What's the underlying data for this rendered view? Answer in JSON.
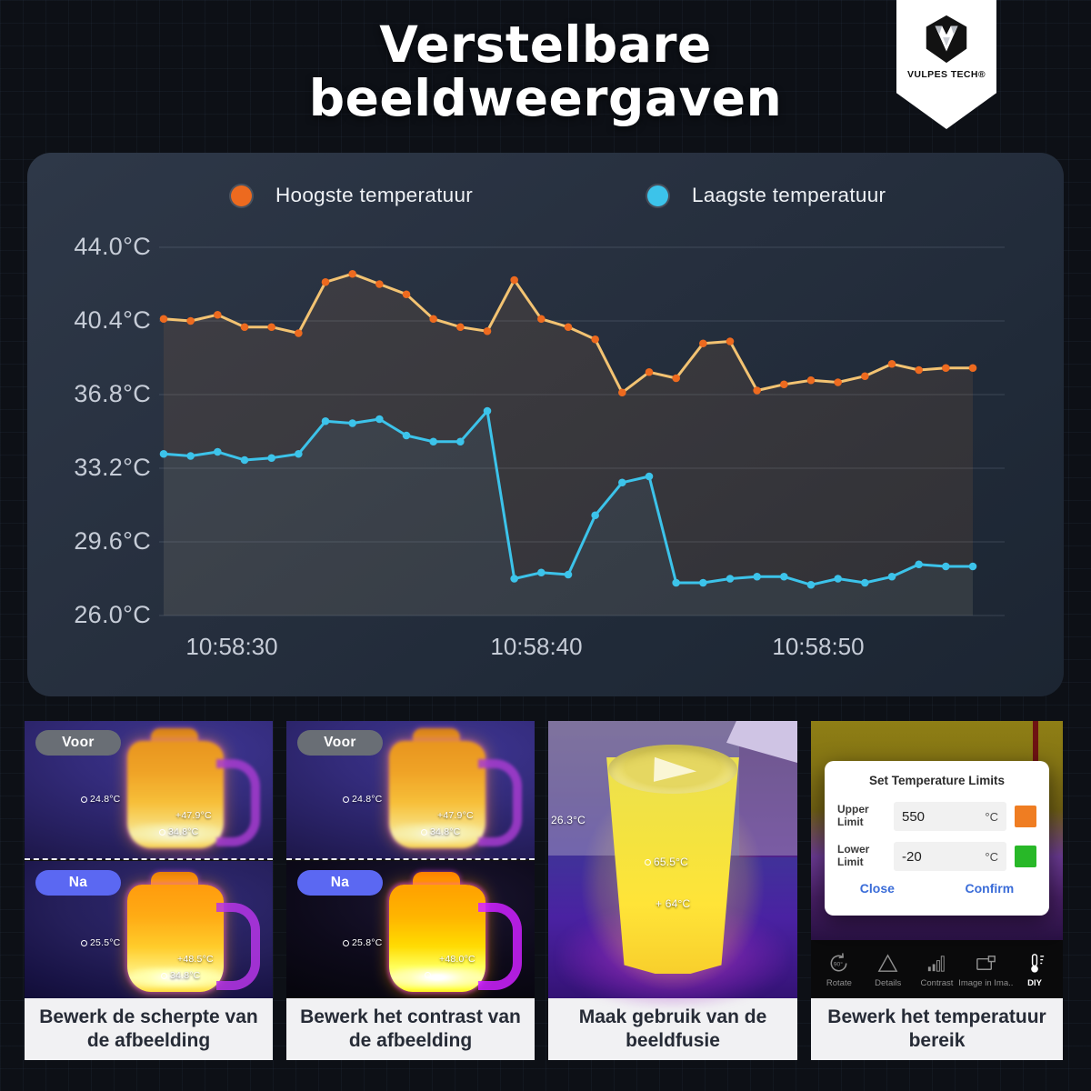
{
  "header": {
    "title": "Verstelbare beeldweergaven",
    "brand": "VULPES TECH®"
  },
  "chart_data": {
    "type": "line",
    "x_tick_labels": [
      "10:58:30",
      "10:58:40",
      "10:58:50"
    ],
    "y_tick_labels": [
      "44.0°C",
      "40.4°C",
      "36.8°C",
      "33.2°C",
      "29.6°C",
      "26.0°C"
    ],
    "y_range": [
      26.0,
      44.0
    ],
    "grid": "horizontal",
    "legend_position": "top",
    "series": [
      {
        "name": "Hoogste temperatuur",
        "marker_color": "#ed6a1f",
        "line_color": "#f3c372",
        "area_color": "rgba(235,150,70,0.10)",
        "values": [
          40.5,
          40.4,
          40.7,
          40.1,
          40.1,
          39.8,
          42.3,
          42.7,
          42.2,
          41.7,
          40.5,
          40.1,
          39.9,
          42.4,
          40.5,
          40.1,
          39.5,
          36.9,
          37.9,
          37.6,
          39.3,
          39.4,
          37.0,
          37.3,
          37.5,
          37.4,
          37.7,
          38.3,
          38.0,
          38.1,
          38.1
        ]
      },
      {
        "name": "Laagste temperatuur",
        "marker_color": "#3cc3ea",
        "line_color": "#3cc3ea",
        "area_color": "rgba(80,160,220,0.08)",
        "values": [
          33.9,
          33.8,
          34.0,
          33.6,
          33.7,
          33.9,
          35.5,
          35.4,
          35.6,
          34.8,
          34.5,
          34.5,
          36.0,
          27.8,
          28.1,
          28.0,
          30.9,
          32.5,
          32.8,
          27.6,
          27.6,
          27.8,
          27.9,
          27.9,
          27.5,
          27.8,
          27.6,
          27.9,
          28.5,
          28.4,
          28.4
        ]
      }
    ]
  },
  "panels": [
    {
      "badge_before": "Voor",
      "badge_after": "Na",
      "temps_before": {
        "spot": "24.8°C",
        "cross": "+47.9°C",
        "center": "34.8°C"
      },
      "temps_after": {
        "spot": "25.5°C",
        "cross": "+48.5°C",
        "center": "34.8°C"
      },
      "caption": "Bewerk de scherpte van de afbeelding"
    },
    {
      "badge_before": "Voor",
      "badge_after": "Na",
      "temps_before": {
        "spot": "24.8°C",
        "cross": "+47.9°C",
        "center": "34.8°C"
      },
      "temps_after": {
        "spot": "25.8°C",
        "cross": "+48.0°C",
        "center": ""
      },
      "caption": "Bewerk het contrast van de afbeelding"
    },
    {
      "fusion_label": "26.3°C",
      "spot": "65.5°C",
      "cross": "+ 64°C",
      "caption": "Maak gebruik van de beeldfusie"
    },
    {
      "dialog": {
        "title": "Set Temperature Limits",
        "rows": [
          {
            "label": "Upper Limit",
            "value": "550",
            "unit": "°C",
            "swatch_color": "#ef7d22"
          },
          {
            "label": "Lower Limit",
            "value": "-20",
            "unit": "°C",
            "swatch_color": "#28b828"
          }
        ],
        "close_label": "Close",
        "confirm_label": "Confirm"
      },
      "toolbar": [
        {
          "label": "Rotate"
        },
        {
          "label": "Details"
        },
        {
          "label": "Contrast"
        },
        {
          "label": "Image in Ima.."
        },
        {
          "label": "DIY"
        }
      ],
      "caption": "Bewerk het temperatuur bereik"
    }
  ]
}
